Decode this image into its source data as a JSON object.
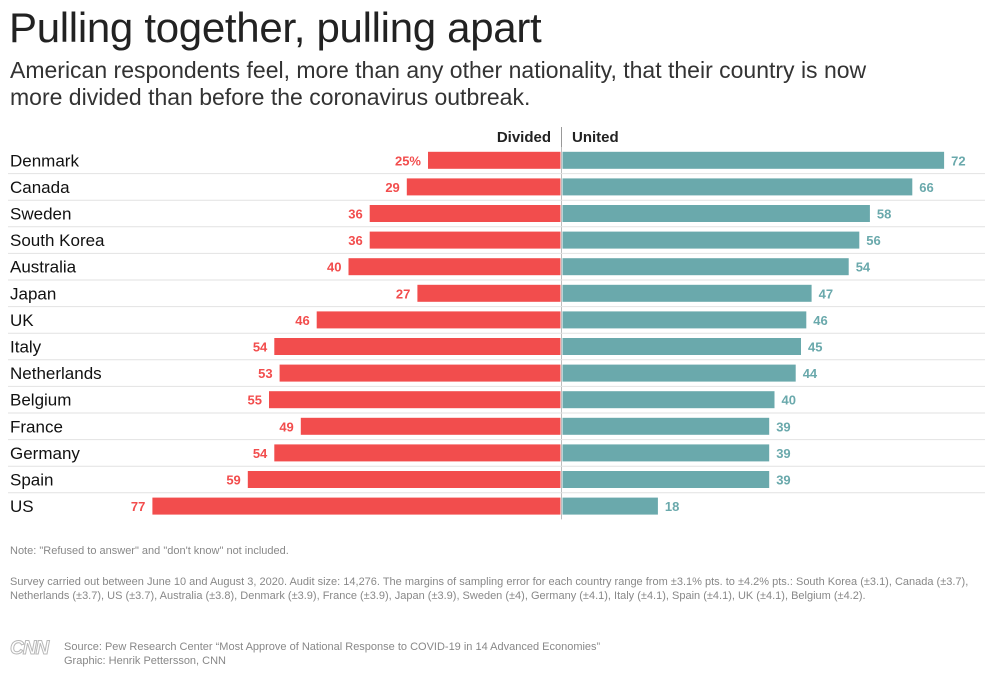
{
  "title": "Pulling together, pulling apart",
  "subtitle": "American respondents feel, more than any other nationality, that their country is now more divided than before the coronavirus outbreak.",
  "colors": {
    "divided": "#f24d4d",
    "united": "#6aa9ac"
  },
  "chart_data": {
    "type": "bar",
    "orientation": "horizontal-diverging",
    "categories": [
      "Denmark",
      "Canada",
      "Sweden",
      "South Korea",
      "Australia",
      "Japan",
      "UK",
      "Italy",
      "Netherlands",
      "Belgium",
      "France",
      "Germany",
      "Spain",
      "US"
    ],
    "series": [
      {
        "name": "Divided",
        "values": [
          25,
          29,
          36,
          36,
          40,
          27,
          46,
          54,
          53,
          55,
          49,
          54,
          59,
          77
        ],
        "labels": [
          "25%",
          "29",
          "36",
          "36",
          "40",
          "27",
          "46",
          "54",
          "53",
          "55",
          "49",
          "54",
          "59",
          "77"
        ]
      },
      {
        "name": "United",
        "values": [
          72,
          66,
          58,
          56,
          54,
          47,
          46,
          45,
          44,
          40,
          39,
          39,
          39,
          18
        ],
        "labels": [
          "72",
          "66",
          "58",
          "56",
          "54",
          "47",
          "46",
          "45",
          "44",
          "40",
          "39",
          "39",
          "39",
          "18"
        ]
      }
    ],
    "title": "Pulling together, pulling apart",
    "xlabel": "",
    "ylabel": "",
    "xlim": [
      0,
      100
    ],
    "grid": false,
    "legend": "top-center"
  },
  "note": "Note: \"Refused to answer\" and \"don't know\" not included.",
  "survey": "Survey carried out between June 10 and August 3, 2020. Audit size: 14,276. The margins of sampling error for each country range from ±3.1% pts. to ±4.2% pts.: South Korea (±3.1), Canada (±3.7), Netherlands (±3.7), US (±3.7), Australia (±3.8), Denmark (±3.9), France (±3.9), Japan  (±3.9), Sweden (±4), Germany (±4.1), Italy (±4.1), Spain (±4.1), UK (±4.1),  Belgium (±4.2).",
  "source": "Source: Pew Research Center “Most Approve of National Response to COVID-19 in 14 Advanced Economies”",
  "credit": "Graphic: Henrik Pettersson, CNN",
  "logo": "CNN"
}
